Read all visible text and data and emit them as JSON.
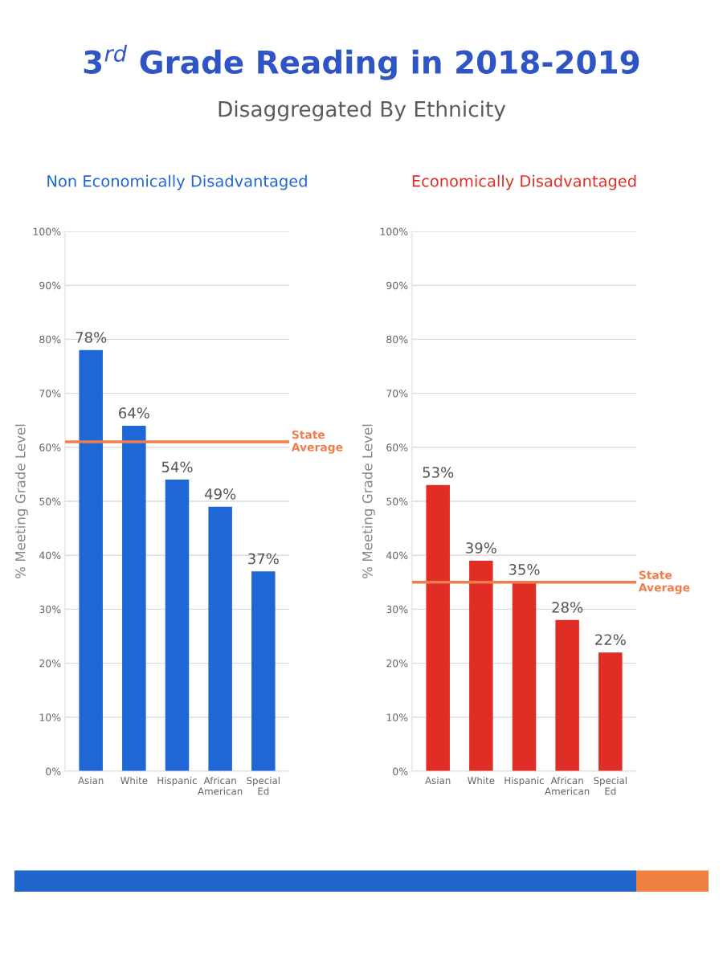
{
  "chart_data": [
    {
      "type": "other",
      "title": "3$^{rd}$ Grade Reading in 2018-2019",
      "subtitle": "Disaggregated By Ethnicity"
    },
    {
      "type": "bar",
      "title": "Non Economically Disadvantaged",
      "ylabel": "% Meeting Grade Level",
      "categories": [
        "Asian",
        "White",
        "Hispanic",
        "African American",
        "Special Ed"
      ],
      "values": [
        78,
        64,
        54,
        49,
        37
      ],
      "value_labels": [
        "78%",
        "64%",
        "54%",
        "49%",
        "37%"
      ],
      "color": "#1f66d6",
      "ylim": [
        0,
        100
      ],
      "yticks": [
        {
          "value": 0,
          "label": "0%"
        },
        {
          "value": 10,
          "label": "10%"
        },
        {
          "value": 20,
          "label": "20%"
        },
        {
          "value": 30,
          "label": "30%"
        },
        {
          "value": 40,
          "label": "40%"
        },
        {
          "value": 50,
          "label": "50%"
        },
        {
          "value": 60,
          "label": "60%"
        },
        {
          "value": 70,
          "label": "70%"
        },
        {
          "value": 80,
          "label": "80%"
        },
        {
          "value": 90,
          "label": "90%"
        },
        {
          "value": 100,
          "label": "100%"
        }
      ],
      "grid": "y",
      "ref_lines": [
        {
          "axis": "y",
          "value": 61,
          "label": "State Average",
          "color": "#f07c4c"
        }
      ]
    },
    {
      "type": "bar",
      "title": "Economically Disadvantaged",
      "ylabel": "% Meeting Grade Level",
      "categories": [
        "Asian",
        "White",
        "Hispanic",
        "African American",
        "Special Ed"
      ],
      "values": [
        53,
        39,
        35,
        28,
        22
      ],
      "value_labels": [
        "53%",
        "39%",
        "35%",
        "28%",
        "22%"
      ],
      "color": "#e02e26",
      "ylim": [
        0,
        100
      ],
      "yticks": [
        {
          "value": 0,
          "label": "0%"
        },
        {
          "value": 10,
          "label": "10%"
        },
        {
          "value": 20,
          "label": "20%"
        },
        {
          "value": 30,
          "label": "30%"
        },
        {
          "value": 40,
          "label": "40%"
        },
        {
          "value": 50,
          "label": "50%"
        },
        {
          "value": 60,
          "label": "60%"
        },
        {
          "value": 70,
          "label": "70%"
        },
        {
          "value": 80,
          "label": "80%"
        },
        {
          "value": 90,
          "label": "90%"
        },
        {
          "value": 100,
          "label": "100%"
        }
      ],
      "grid": "y",
      "ref_lines": [
        {
          "axis": "y",
          "value": 35,
          "label": "State Average",
          "color": "#f07c4c"
        }
      ]
    }
  ]
}
